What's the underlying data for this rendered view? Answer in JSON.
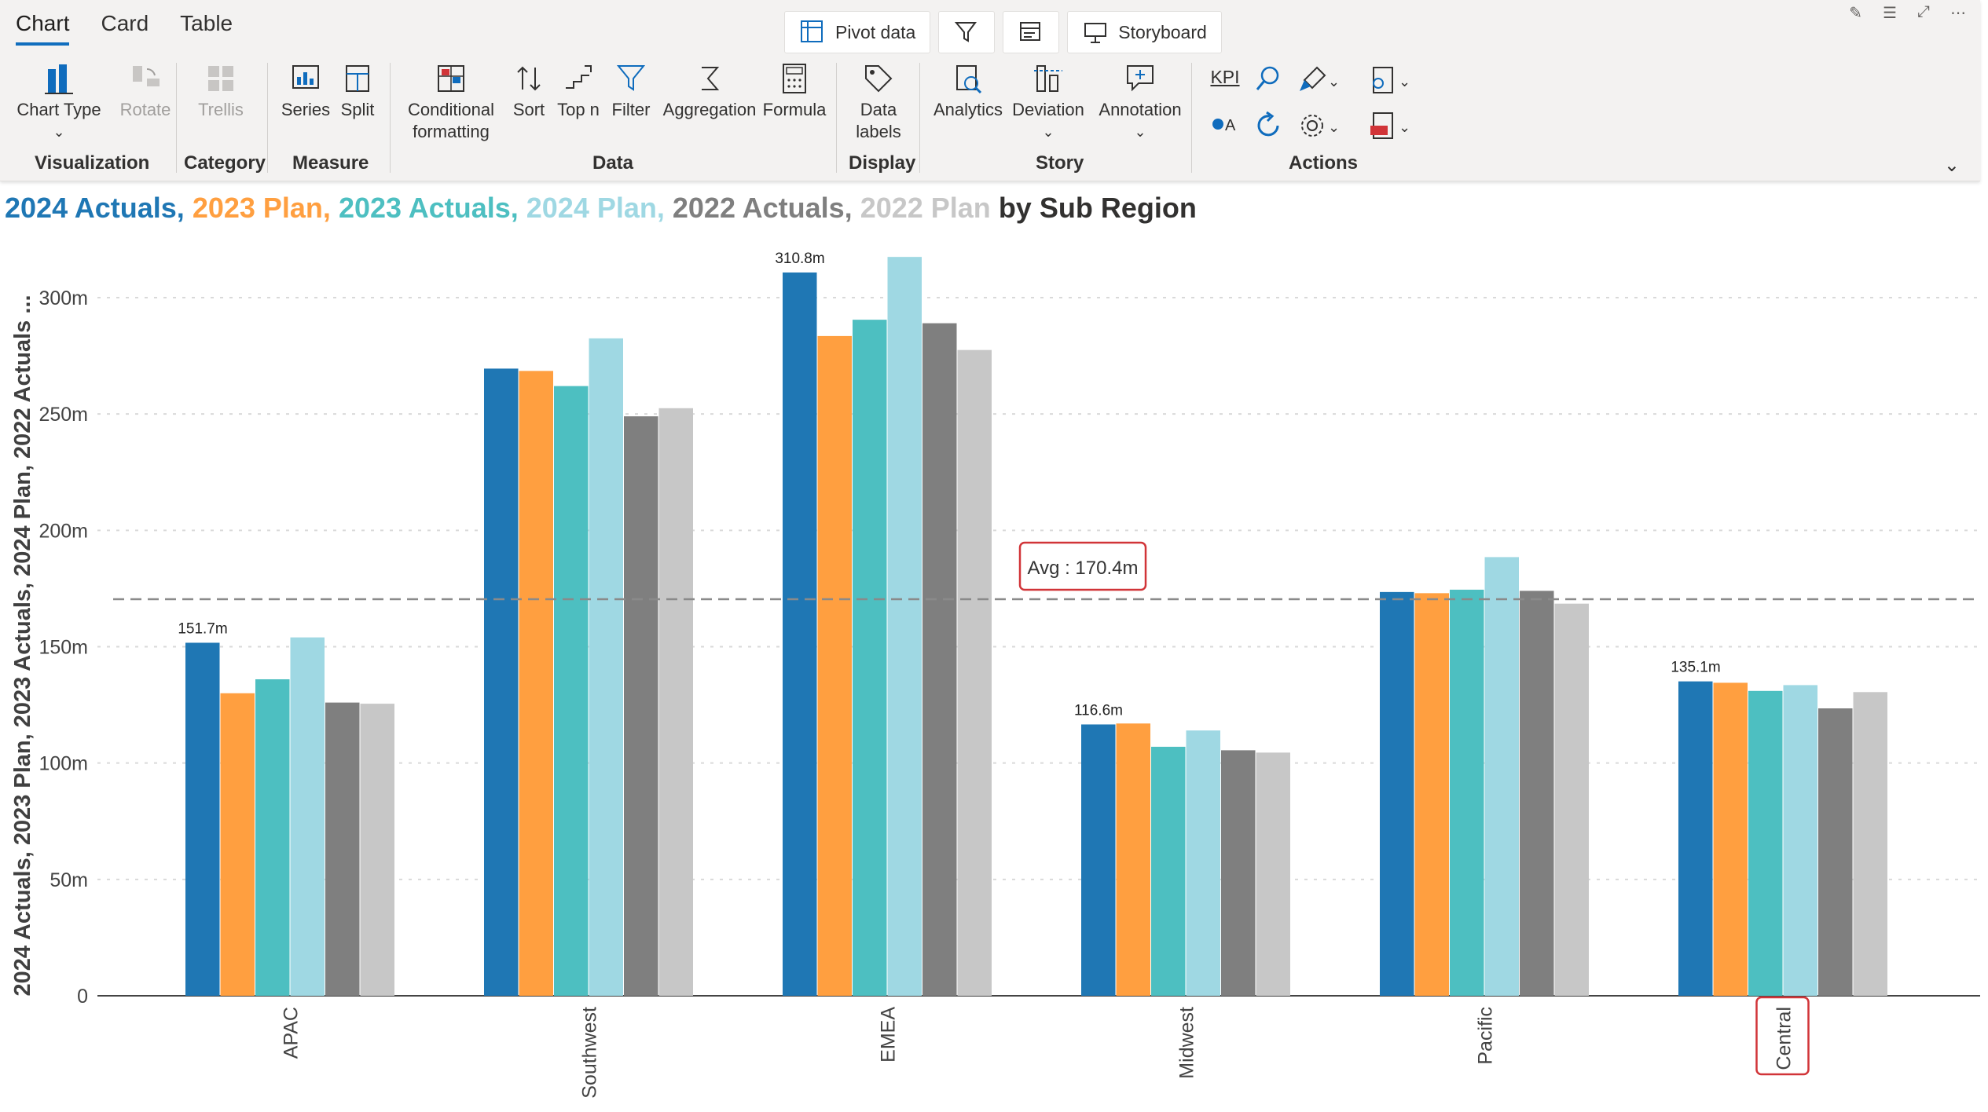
{
  "tabs": [
    {
      "label": "Chart",
      "active": true
    },
    {
      "label": "Card",
      "active": false
    },
    {
      "label": "Table",
      "active": false
    }
  ],
  "top_buttons": {
    "pivot": "Pivot data",
    "storyboard": "Storyboard"
  },
  "ribbon": {
    "groups": {
      "visualization": "Visualization",
      "category": "Category",
      "measure": "Measure",
      "data": "Data",
      "display": "Display",
      "story": "Story",
      "actions": "Actions"
    },
    "tools": {
      "chart_type": "Chart Type",
      "rotate": "Rotate",
      "trellis": "Trellis",
      "series": "Series",
      "split": "Split",
      "cond_line1": "Conditional",
      "cond_line2": "formatting",
      "sort": "Sort",
      "topn": "Top n",
      "filter": "Filter",
      "aggregation": "Aggregation",
      "formula": "Formula",
      "data_labels_line1": "Data",
      "data_labels_line2": "labels",
      "analytics": "Analytics",
      "deviation": "Deviation",
      "annotation": "Annotation",
      "kpi": "KPI"
    }
  },
  "title": {
    "parts": [
      {
        "text": "2024 Actuals,",
        "color": "#1f77b4"
      },
      {
        "text": "2023 Plan,",
        "color": "#ff9f40"
      },
      {
        "text": "2023 Actuals,",
        "color": "#4dbfc1"
      },
      {
        "text": "2024 Plan,",
        "color": "#9fd8e3"
      },
      {
        "text": "2022 Actuals,",
        "color": "#7f7f7f"
      },
      {
        "text": "2022 Plan",
        "color": "#c7c7c7"
      },
      {
        "text": "by Sub Region",
        "color": "#323130"
      }
    ]
  },
  "chart_data": {
    "type": "bar",
    "ylabel": "2024 Actuals, 2023 Plan, 2023 Actuals, 2024 Plan, 2022 Actuals ...",
    "categories": [
      "APAC",
      "Southwest",
      "EMEA",
      "Midwest",
      "Pacific",
      "Central"
    ],
    "ylim": [
      0,
      300
    ],
    "yticks": [
      {
        "value": 0,
        "label": "0"
      },
      {
        "value": 50,
        "label": "50m"
      },
      {
        "value": 100,
        "label": "100m"
      },
      {
        "value": 150,
        "label": "150m"
      },
      {
        "value": 200,
        "label": "200m"
      },
      {
        "value": 250,
        "label": "250m"
      },
      {
        "value": 300,
        "label": "300m"
      }
    ],
    "grid": true,
    "average": {
      "value": 170.4,
      "label": "Avg : 170.4m"
    },
    "series": [
      {
        "name": "2024 Actuals",
        "color": "#1f77b4",
        "values": [
          151.7,
          269.5,
          310.8,
          116.6,
          173.5,
          135.1
        ],
        "data_labels": [
          "151.7m",
          "",
          "310.8m",
          "116.6m",
          "",
          "135.1m"
        ]
      },
      {
        "name": "2023 Plan",
        "color": "#ff9f40",
        "values": [
          130,
          268.5,
          283.5,
          117,
          173,
          134.5
        ]
      },
      {
        "name": "2023 Actuals",
        "color": "#4dbfc1",
        "values": [
          136,
          262,
          290.5,
          107,
          174.5,
          131
        ]
      },
      {
        "name": "2024 Plan",
        "color": "#9fd8e3",
        "values": [
          154,
          282.5,
          317.5,
          114,
          188.5,
          133.5
        ]
      },
      {
        "name": "2022 Actuals",
        "color": "#7f7f7f",
        "values": [
          126,
          249,
          289,
          105.5,
          174,
          123.5
        ]
      },
      {
        "name": "2022 Plan",
        "color": "#c7c7c7",
        "values": [
          125.5,
          252.5,
          277.5,
          104.5,
          168.5,
          130.5
        ]
      }
    ],
    "highlighted_category": "Central"
  }
}
